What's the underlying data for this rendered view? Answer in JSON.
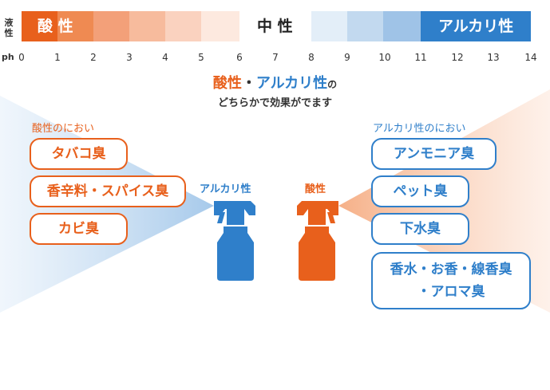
{
  "scale": {
    "side_label": "液\n性",
    "ph_label": "ph",
    "acid_label": "酸 性",
    "neutral_label": "中 性",
    "alkali_label": "アルカリ性",
    "ticks": [
      "0",
      "1",
      "2",
      "3",
      "4",
      "5",
      "6",
      "7",
      "8",
      "9",
      "10",
      "11",
      "12",
      "13",
      "14"
    ],
    "acid_colors": [
      "#e8601c",
      "#f09a6c",
      "#f5b190",
      "#f8c8b0",
      "#fce4d8",
      "#ffffff"
    ],
    "alkali_colors": [
      "#e3eef8",
      "#c6dcf0",
      "#a5c9e8",
      "#ffffff",
      "#2f7fca",
      "#2f7fca"
    ]
  },
  "headline": {
    "acid": "酸性",
    "dot": "・",
    "alkali": "アルカリ性",
    "no": "の",
    "sub": "どちらかで効果がでます"
  },
  "left_group": {
    "title": "酸性のにおい",
    "items": [
      "タバコ臭",
      "香辛料・スパイス臭",
      "カビ臭"
    ]
  },
  "right_group": {
    "title": "アルカリ性のにおい",
    "items": [
      "アンモニア臭",
      "ペット臭",
      "下水臭",
      "香水・お香・線香臭\n・アロマ臭"
    ]
  },
  "sprays": {
    "alkali_label": "アルカリ性",
    "acid_label": "酸性",
    "alkali_color": "#2f7fca",
    "acid_color": "#e8601c"
  }
}
